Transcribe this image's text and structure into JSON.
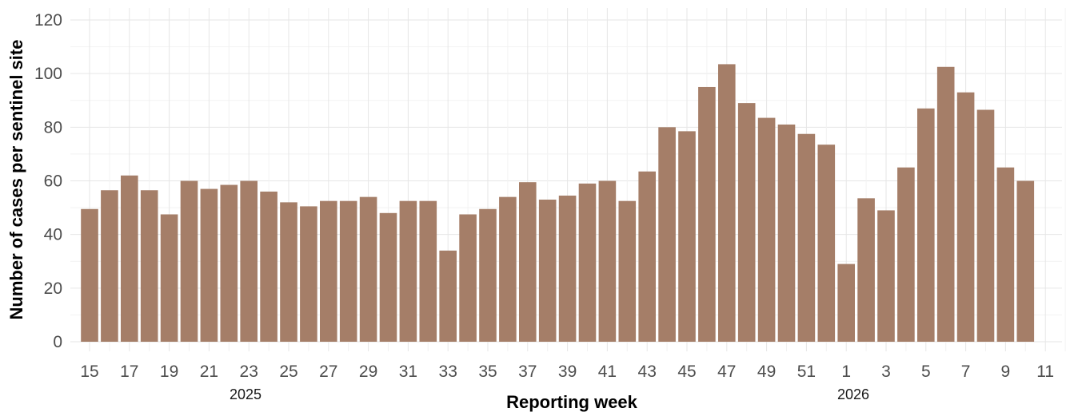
{
  "chart_data": {
    "type": "bar",
    "xlabel": "Reporting week",
    "ylabel": "Number of cases per sentinel site",
    "ylim": [
      0,
      120
    ],
    "yticks": [
      0,
      20,
      40,
      60,
      80,
      100,
      120
    ],
    "grid": true,
    "bar_color": "#a57e68",
    "categories": [
      "15",
      "16",
      "17",
      "18",
      "19",
      "20",
      "21",
      "22",
      "23",
      "24",
      "25",
      "26",
      "27",
      "28",
      "29",
      "30",
      "31",
      "32",
      "33",
      "34",
      "35",
      "36",
      "37",
      "38",
      "39",
      "40",
      "41",
      "42",
      "43",
      "44",
      "45",
      "46",
      "47",
      "48",
      "49",
      "50",
      "51",
      "52",
      "1",
      "2",
      "3",
      "4",
      "5",
      "6",
      "7",
      "8",
      "9",
      "10"
    ],
    "values": [
      49.5,
      56.5,
      62,
      56.5,
      47.5,
      60,
      57,
      58.5,
      60,
      56,
      52,
      50.5,
      52.5,
      52.5,
      54,
      48,
      52.5,
      52.5,
      34,
      47.5,
      49.5,
      54,
      59.5,
      53,
      54.5,
      59,
      60,
      52.5,
      63.5,
      80,
      78.5,
      95,
      103.5,
      89,
      83.5,
      81,
      77.5,
      73.5,
      29,
      53.5,
      49,
      65,
      87,
      102.5,
      93,
      86.5,
      65,
      60
    ],
    "x_tick_labels": [
      "15",
      "17",
      "19",
      "21",
      "23",
      "25",
      "27",
      "29",
      "31",
      "33",
      "35",
      "37",
      "39",
      "41",
      "43",
      "45",
      "47",
      "49",
      "51",
      "1",
      "3",
      "5",
      "7",
      "9",
      "11"
    ],
    "group_labels": [
      "2025",
      "2026"
    ]
  }
}
